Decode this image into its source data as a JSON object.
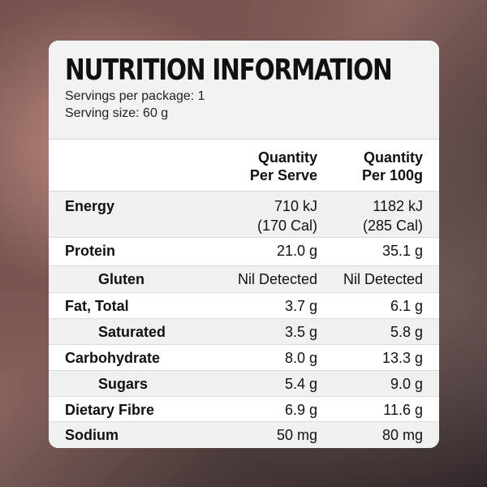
{
  "title": "NUTRITION INFORMATION",
  "servings_per_package": "Servings per package: 1",
  "serving_size": "Serving size: 60 g",
  "columns": {
    "per_serve": [
      "Quantity",
      "Per Serve"
    ],
    "per_100g": [
      "Quantity",
      "Per 100g"
    ]
  },
  "rows": [
    {
      "name": "Energy",
      "serve": [
        "710 kJ",
        "(170 Cal)"
      ],
      "per100": [
        "1182 kJ",
        "(285 Cal)"
      ]
    },
    {
      "name": "Protein",
      "serve": [
        "21.0 g"
      ],
      "per100": [
        "35.1 g"
      ]
    },
    {
      "name": "Gluten",
      "serve": [
        "Nil Detected"
      ],
      "per100": [
        "Nil Detected"
      ],
      "indent": true
    },
    {
      "name": "Fat, Total",
      "serve": [
        "3.7 g"
      ],
      "per100": [
        "6.1 g"
      ]
    },
    {
      "name": "Saturated",
      "serve": [
        "3.5 g"
      ],
      "per100": [
        "5.8 g"
      ],
      "indent": true
    },
    {
      "name": "Carbohydrate",
      "serve": [
        "8.0 g"
      ],
      "per100": [
        "13.3 g"
      ]
    },
    {
      "name": "Sugars",
      "serve": [
        "5.4 g"
      ],
      "per100": [
        "9.0 g"
      ],
      "indent": true
    },
    {
      "name": "Dietary Fibre",
      "serve": [
        "6.9 g"
      ],
      "per100": [
        "11.6 g"
      ]
    },
    {
      "name": "Sodium",
      "serve": [
        "50 mg"
      ],
      "per100": [
        "80 mg"
      ]
    }
  ]
}
